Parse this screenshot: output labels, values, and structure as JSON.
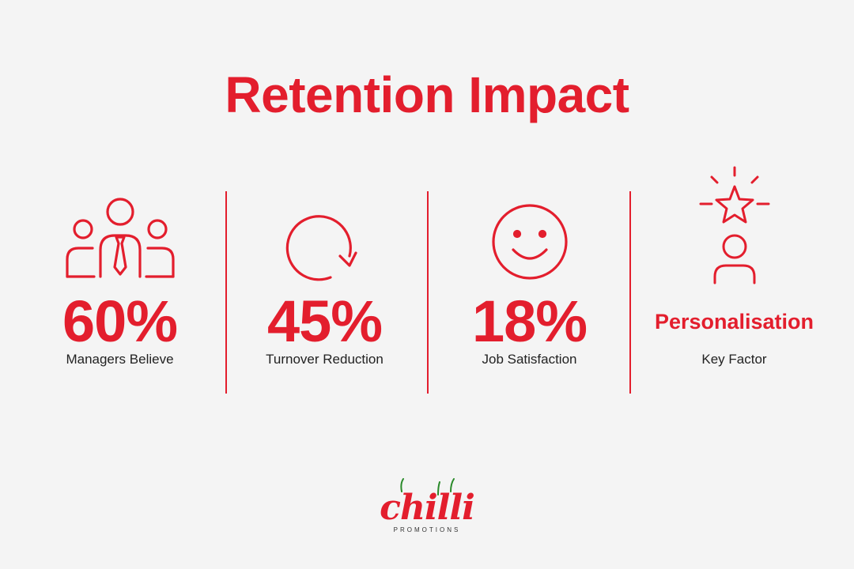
{
  "title": "Retention Impact",
  "accent_color": "#e31e2d",
  "stats": [
    {
      "icon": "team-with-tie-icon",
      "value": "60%",
      "label": "Managers Believe"
    },
    {
      "icon": "circular-arrow-icon",
      "value": "45%",
      "label": "Turnover Reduction"
    },
    {
      "icon": "smiley-face-icon",
      "value": "18%",
      "label": "Job Satisfaction"
    },
    {
      "icon": "person-star-icon",
      "value": "Personalisation",
      "label": "Key Factor"
    }
  ],
  "logo": {
    "brand": "chilli",
    "subtitle": "PROMOTIONS"
  }
}
